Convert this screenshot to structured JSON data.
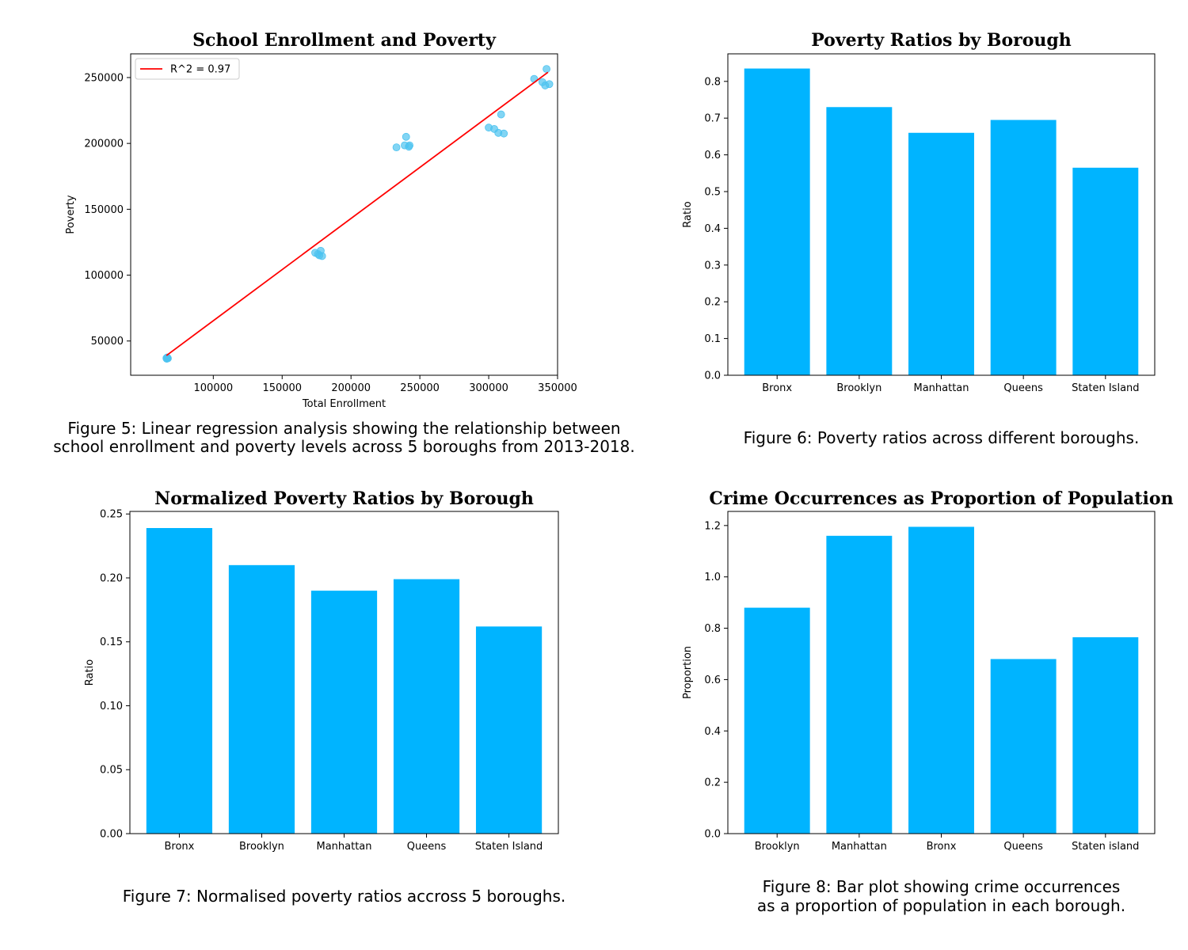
{
  "colors": {
    "bar": "#00b4ff",
    "point": "#4dc3f0",
    "fit": "#ff0000",
    "axis": "#000000"
  },
  "chart_data": [
    {
      "type": "scatter",
      "title": "School Enrollment and Poverty",
      "xlabel": "Total Enrollment",
      "ylabel": "Poverty",
      "xlim": [
        40000,
        350000
      ],
      "ylim": [
        24000,
        268000
      ],
      "xticks": [
        100000,
        150000,
        200000,
        250000,
        300000,
        350000
      ],
      "yticks": [
        50000,
        100000,
        150000,
        200000,
        250000
      ],
      "points": [
        {
          "x": 66000,
          "y": 37000
        },
        {
          "x": 66500,
          "y": 37500
        },
        {
          "x": 67000,
          "y": 36800
        },
        {
          "x": 66200,
          "y": 36500
        },
        {
          "x": 66800,
          "y": 37200
        },
        {
          "x": 174000,
          "y": 117000
        },
        {
          "x": 176000,
          "y": 116000
        },
        {
          "x": 177000,
          "y": 115000
        },
        {
          "x": 178000,
          "y": 118500
        },
        {
          "x": 179000,
          "y": 114500
        },
        {
          "x": 233000,
          "y": 197000
        },
        {
          "x": 239000,
          "y": 198500
        },
        {
          "x": 240000,
          "y": 205000
        },
        {
          "x": 242000,
          "y": 197500
        },
        {
          "x": 242500,
          "y": 198500
        },
        {
          "x": 300000,
          "y": 212000
        },
        {
          "x": 304000,
          "y": 211000
        },
        {
          "x": 307000,
          "y": 208000
        },
        {
          "x": 309000,
          "y": 222000
        },
        {
          "x": 311000,
          "y": 207500
        },
        {
          "x": 333000,
          "y": 249000
        },
        {
          "x": 339000,
          "y": 246500
        },
        {
          "x": 341000,
          "y": 244000
        },
        {
          "x": 342000,
          "y": 256500
        },
        {
          "x": 344000,
          "y": 245000
        }
      ],
      "fit_line": {
        "x": [
          66000,
          343000
        ],
        "y": [
          39000,
          254000
        ]
      },
      "legend": {
        "label": "R^2 = 0.97",
        "position": "upper-left"
      },
      "caption": [
        "Figure 5: Linear regression analysis showing the relationship between",
        "school enrollment and poverty levels across 5 boroughs from 2013-2018."
      ]
    },
    {
      "type": "bar",
      "title": "Poverty Ratios by Borough",
      "xlabel": "",
      "ylabel": "Ratio",
      "ylim": [
        0,
        0.875
      ],
      "yticks": [
        0.0,
        0.1,
        0.2,
        0.3,
        0.4,
        0.5,
        0.6,
        0.7,
        0.8
      ],
      "ytick_labels": [
        "0.0",
        "0.1",
        "0.2",
        "0.3",
        "0.4",
        "0.5",
        "0.6",
        "0.7",
        "0.8"
      ],
      "categories": [
        "Bronx",
        "Brooklyn",
        "Manhattan",
        "Queens",
        "Staten Island"
      ],
      "values": [
        0.835,
        0.73,
        0.66,
        0.695,
        0.565
      ],
      "caption": [
        "Figure 6: Poverty ratios across different boroughs."
      ]
    },
    {
      "type": "bar",
      "title": "Normalized Poverty Ratios by Borough",
      "xlabel": "",
      "ylabel": "Ratio",
      "ylim": [
        0,
        0.252
      ],
      "yticks": [
        0.0,
        0.05,
        0.1,
        0.15,
        0.2,
        0.25
      ],
      "ytick_labels": [
        "0.00",
        "0.05",
        "0.10",
        "0.15",
        "0.20",
        "0.25"
      ],
      "categories": [
        "Bronx",
        "Brooklyn",
        "Manhattan",
        "Queens",
        "Staten Island"
      ],
      "values": [
        0.239,
        0.21,
        0.19,
        0.199,
        0.162
      ],
      "caption": [
        "Figure 7: Normalised poverty ratios accross 5 boroughs."
      ]
    },
    {
      "type": "bar",
      "title": "Crime Occurrences as Proportion of Population",
      "xlabel": "",
      "ylabel": "Proportion",
      "ylim": [
        0,
        1.255
      ],
      "yticks": [
        0.0,
        0.2,
        0.4,
        0.6,
        0.8,
        1.0,
        1.2
      ],
      "ytick_labels": [
        "0.0",
        "0.2",
        "0.4",
        "0.6",
        "0.8",
        "1.0",
        "1.2"
      ],
      "categories": [
        "Brooklyn",
        "Manhattan",
        "Bronx",
        "Queens",
        "Staten island"
      ],
      "values": [
        0.88,
        1.16,
        1.195,
        0.68,
        0.765
      ],
      "caption": [
        "Figure 8: Bar plot showing crime occurrences",
        "as a proportion of population in each borough."
      ]
    }
  ]
}
